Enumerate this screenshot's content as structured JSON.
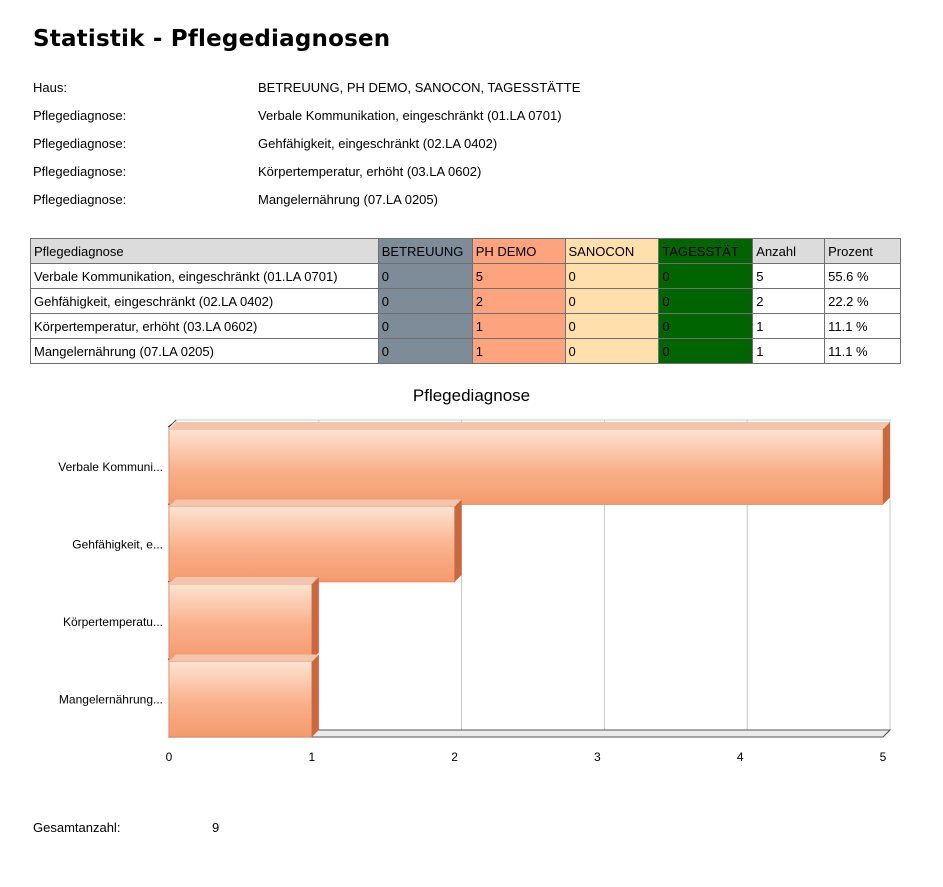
{
  "title": "Statistik - Pflegediagnosen",
  "info": [
    {
      "label": "Haus:",
      "value": "BETREUUNG, PH DEMO, SANOCON, TAGESSTÄTTE"
    },
    {
      "label": "Pflegediagnose:",
      "value": "Verbale Kommunikation, eingeschränkt (01.LA 0701)"
    },
    {
      "label": "Pflegediagnose:",
      "value": "Gehfähigkeit, eingeschränkt (02.LA 0402)"
    },
    {
      "label": "Pflegediagnose:",
      "value": "Körpertemperatur, erhöht (03.LA 0602)"
    },
    {
      "label": "Pflegediagnose:",
      "value": "Mangelernährung (07.LA 0205)"
    }
  ],
  "table": {
    "headers": [
      "Pflegediagnose",
      "BETREUUNG",
      "PH DEMO",
      "SANOCON",
      "TAGESSTÄT",
      "Anzahl",
      "Prozent"
    ],
    "rows": [
      [
        "Verbale Kommunikation, eingeschränkt (01.LA 0701)",
        "0",
        "5",
        "0",
        "0",
        "5",
        "55.6 %"
      ],
      [
        "Gehfähigkeit, eingeschränkt (02.LA 0402)",
        "0",
        "2",
        "0",
        "0",
        "2",
        "22.2 %"
      ],
      [
        "Körpertemperatur, erhöht (03.LA 0602)",
        "0",
        "1",
        "0",
        "0",
        "1",
        "11.1 %"
      ],
      [
        "Mangelernährung (07.LA 0205)",
        "0",
        "1",
        "0",
        "0",
        "1",
        "11.1 %"
      ]
    ],
    "column_colors": {
      "BETREUUNG": "#7e8c99",
      "PH DEMO": "#fda47f",
      "SANOCON": "#ffdfab",
      "TAGESSTÄT": "#006400",
      "header": "#dcdcdc"
    }
  },
  "chart_data": {
    "type": "bar",
    "orientation": "horizontal",
    "title": "Pflegediagnose",
    "categories": [
      "Verbale Kommuni...",
      "Gehfähigkeit, e...",
      "Körpertemperatu...",
      "Mangelernährung..."
    ],
    "values": [
      5,
      2,
      1,
      1
    ],
    "xlim": [
      0,
      5
    ],
    "xticks": [
      "0",
      "1",
      "2",
      "3",
      "4",
      "5"
    ],
    "grid": true,
    "bar_color": "#f9a679",
    "legend": "none"
  },
  "footer": {
    "label": "Gesamtanzahl:",
    "value": "9"
  }
}
